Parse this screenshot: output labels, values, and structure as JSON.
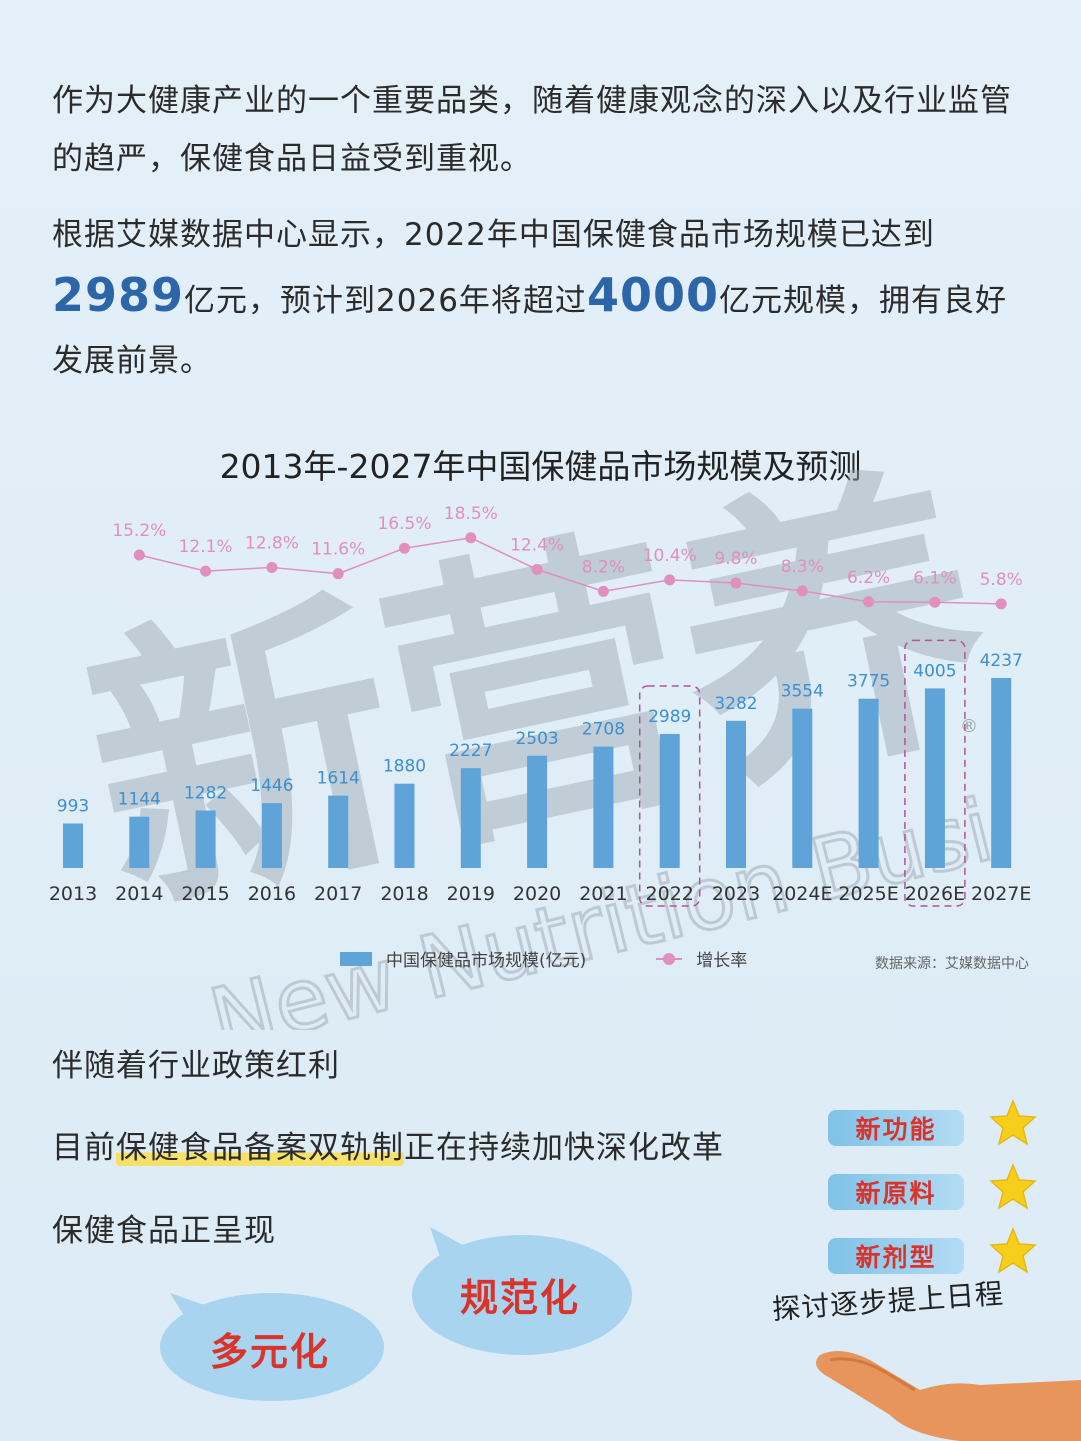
{
  "intro": {
    "line1": "作为大健康产业的一个重要品类，随着健康观念的深入以及行业监管的趋严，保健食品日益受到重视。",
    "p2_pre": "根据艾媒数据中心显示，2022年中国保健食品市场规模已达到",
    "p2_num1": "2989",
    "p2_mid": "亿元，预计到2026年将超过",
    "p2_num2": "4000",
    "p2_post": "亿元规模，拥有良好发展前景。"
  },
  "chart_data": {
    "type": "bar",
    "title": "2013年-2027年中国保健品市场规模及预测",
    "categories": [
      "2013",
      "2014",
      "2015",
      "2016",
      "2017",
      "2018",
      "2019",
      "2020",
      "2021",
      "2022",
      "2023",
      "2024E",
      "2025E",
      "2026E",
      "2027E"
    ],
    "series": [
      {
        "name": "中国保健品市场规模(亿元)",
        "type": "bar",
        "color": "#5fa4d9",
        "values": [
          993,
          1144,
          1282,
          1446,
          1614,
          1880,
          2227,
          2503,
          2708,
          2989,
          3282,
          3554,
          3775,
          4005,
          4237
        ]
      },
      {
        "name": "增长率",
        "type": "line",
        "color": "#e08fbf",
        "values": [
          null,
          15.2,
          12.1,
          12.8,
          11.6,
          16.5,
          18.5,
          12.4,
          8.2,
          10.4,
          9.8,
          8.3,
          6.2,
          6.1,
          5.8
        ],
        "labels": [
          "",
          "15.2%",
          "12.1%",
          "12.8%",
          "11.6%",
          "16.5%",
          "18.5%",
          "12.4%",
          "8.2%",
          "10.4%",
          "9.8%",
          "8.3%",
          "6.2%",
          "6.1%",
          "5.8%"
        ]
      }
    ],
    "highlighted_categories": [
      "2022",
      "2026E"
    ],
    "legend": {
      "placement": "bottom"
    },
    "source": "数据来源：艾媒数据中心"
  },
  "watermark": {
    "cn": "新营养",
    "en": "New Nutrition Business",
    "reg": "®"
  },
  "bottom": {
    "line1": "伴随着行业政策红利",
    "line2_pre": "目前",
    "line2_hl": "保健食品备案双轨制",
    "line2_post": "正在持续加快深化改革",
    "line3": "保健食品正呈现",
    "bubble1": "多元化",
    "bubble2": "规范化",
    "tags": [
      "新功能",
      "新原料",
      "新剂型"
    ],
    "hand_text": "探讨逐步提上日程"
  },
  "colors": {
    "bar": "#5fa4d9",
    "line": "#e08fbf",
    "accent_red": "#d9342b",
    "number_blue": "#2d66a8",
    "star": "#f6cf1c"
  },
  "icons": {
    "star": "star-icon",
    "hand": "hand-icon"
  }
}
